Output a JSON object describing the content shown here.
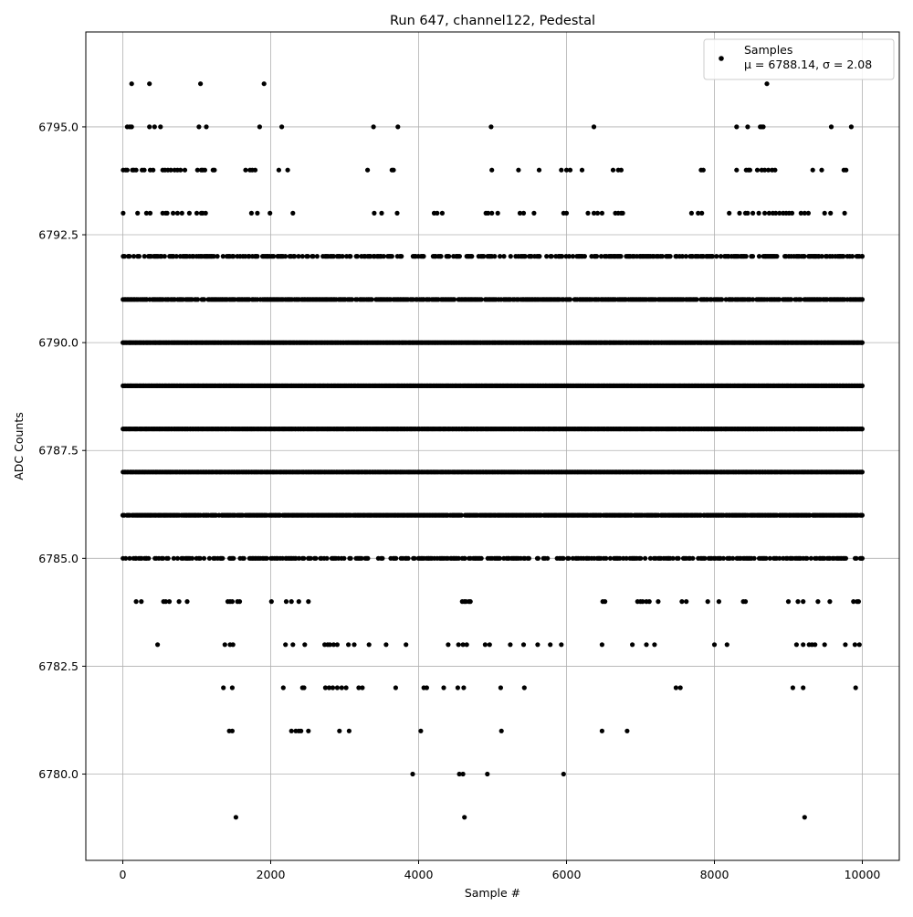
{
  "chart_data": {
    "type": "scatter",
    "title": "Run 647, channel122, Pedestal",
    "xlabel": "Sample #",
    "ylabel": "ADC Counts",
    "xlim": [
      -500,
      10500
    ],
    "ylim": [
      6778.0,
      6797.2
    ],
    "xticks": [
      0,
      2000,
      4000,
      6000,
      8000,
      10000
    ],
    "xtick_labels": [
      "0",
      "2000",
      "4000",
      "6000",
      "8000",
      "10000"
    ],
    "yticks": [
      6780.0,
      6782.5,
      6785.0,
      6787.5,
      6790.0,
      6792.5,
      6795.0
    ],
    "ytick_labels": [
      "6780.0",
      "6782.5",
      "6785.0",
      "6787.5",
      "6790.0",
      "6792.5",
      "6795.0"
    ],
    "grid": true,
    "legend_position": "top-right",
    "series": [
      {
        "name": "Samples",
        "stats_label": "μ = 6788.14, σ = 2.08",
        "color": "#000000",
        "marker": "circle",
        "x_range": [
          0,
          9999
        ],
        "levels": [
          {
            "y": 6796,
            "x": [
              120,
              360,
              1050,
              1910,
              8710
            ]
          },
          {
            "y": 6795,
            "x": [
              60,
              95,
              120,
              360,
              430,
              510,
              1030,
              1130,
              1850,
              2150,
              3390,
              3720,
              4980,
              6370,
              8300,
              8450,
              8620,
              8640,
              8660,
              9580,
              9850
            ]
          },
          {
            "y": 6794,
            "x": [
              5,
              40,
              60,
              130,
              150,
              180,
              260,
              290,
              370,
              410,
              540,
              570,
              610,
              650,
              700,
              740,
              780,
              840,
              1010,
              1060,
              1080,
              1110,
              1220,
              1240,
              1660,
              1720,
              1750,
              1790,
              2110,
              2230,
              3310,
              3640,
              3660,
              4990,
              5350,
              5630,
              5930,
              6000,
              6050,
              6210,
              6630,
              6700,
              6740,
              7820,
              7850,
              8300,
              8430,
              8460,
              8480,
              8580,
              8640,
              8680,
              8730,
              8780,
              8820,
              9330,
              9450,
              9750,
              9780
            ]
          },
          {
            "y": 6793,
            "x": [
              5,
              200,
              320,
              370,
              540,
              580,
              600,
              680,
              740,
              800,
              900,
              1000,
              1060,
              1080,
              1120,
              1740,
              1820,
              1990,
              2300,
              3400,
              3500,
              3710,
              4210,
              4250,
              4320,
              4910,
              4940,
              4990,
              5070,
              5370,
              5420,
              5560,
              5960,
              6000,
              6290,
              6370,
              6420,
              6480,
              6660,
              6700,
              6740,
              6760,
              7690,
              7780,
              7830,
              8200,
              8340,
              8420,
              8450,
              8520,
              8600,
              8680,
              8740,
              8790,
              8830,
              8880,
              8930,
              8970,
              9010,
              9050,
              9170,
              9220,
              9270,
              9490,
              9570,
              9760
            ]
          },
          {
            "y": 6784,
            "x": [
              180,
              250,
              550,
              580,
              630,
              760,
              870,
              1420,
              1450,
              1480,
              1550,
              1580,
              2010,
              2210,
              2280,
              2380,
              2510,
              4590,
              4620,
              4640,
              4680,
              4700,
              6490,
              6520,
              6960,
              7000,
              7030,
              7080,
              7120,
              7240,
              7560,
              7620,
              7910,
              8060,
              8390,
              8420,
              9000,
              9130,
              9200,
              9400,
              9560,
              9880,
              9930,
              9950
            ]
          },
          {
            "y": 6783,
            "x": [
              470,
              1380,
              1450,
              1490,
              2200,
              2300,
              2460,
              2730,
              2770,
              2800,
              2850,
              2900,
              3050,
              3130,
              3330,
              3560,
              3830,
              4400,
              4540,
              4600,
              4650,
              4900,
              4960,
              5240,
              5420,
              5610,
              5780,
              5930,
              6480,
              6890,
              7080,
              7190,
              8000,
              8170,
              9110,
              9200,
              9280,
              9320,
              9360,
              9490,
              9770,
              9900,
              9960
            ]
          },
          {
            "y": 6782,
            "x": [
              1360,
              1480,
              2170,
              2430,
              2450,
              2740,
              2790,
              2840,
              2900,
              2960,
              3020,
              3190,
              3240,
              3690,
              4070,
              4110,
              4340,
              4530,
              4610,
              5110,
              5430,
              7480,
              7540,
              9060,
              9200,
              9910
            ]
          },
          {
            "y": 6781,
            "x": [
              1440,
              1480,
              2280,
              2340,
              2380,
              2410,
              2510,
              2930,
              3060,
              4030,
              5120,
              6480,
              6820
            ]
          },
          {
            "y": 6780,
            "x": [
              3920,
              4550,
              4600,
              4930,
              5960
            ]
          },
          {
            "y": 6779,
            "x": [
              1530,
              4620,
              9220
            ]
          }
        ],
        "dense_levels": [
          6785,
          6786,
          6787,
          6788,
          6789,
          6790,
          6791,
          6792
        ],
        "dense_density": [
          0.55,
          0.95,
          1.0,
          1.0,
          1.0,
          1.0,
          0.85,
          0.55
        ]
      }
    ]
  }
}
